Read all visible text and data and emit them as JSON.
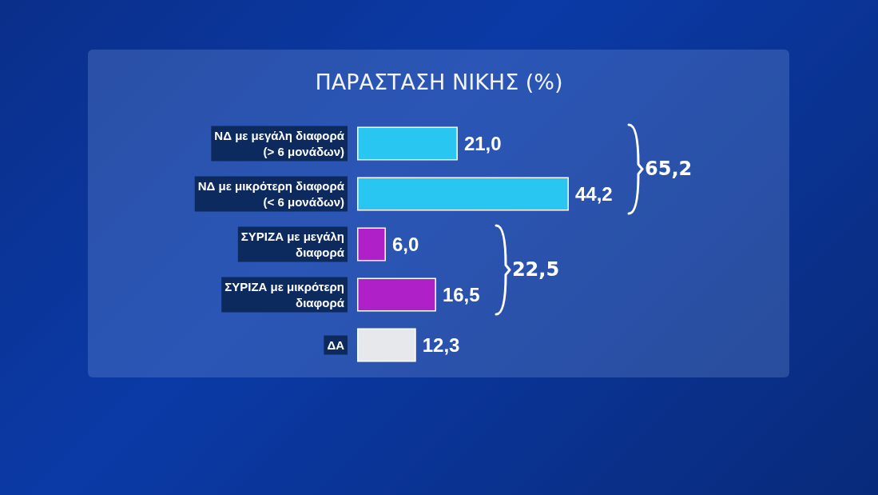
{
  "chart_data": {
    "type": "bar",
    "orientation": "horizontal",
    "title": "ΠΑΡΑΣΤΑΣΗ ΝΙΚΗΣ (%)",
    "categories": [
      "ΝΔ με μεγάλη διαφορά\n(> 6 μονάδων)",
      "ΝΔ με μικρότερη διαφορά\n(< 6 μονάδων)",
      "ΣΥΡΙΖΑ με μεγάλη\nδιαφορά",
      "ΣΥΡΙΖΑ με μικρότερη\nδιαφορά",
      "ΔΑ"
    ],
    "values": [
      21.0,
      44.2,
      6.0,
      16.5,
      12.3
    ],
    "colors": [
      "#2ac6f2",
      "#2ac6f2",
      "#b020c8",
      "#b020c8",
      "#e6e8ec"
    ],
    "value_labels": [
      "21,0",
      "44,2",
      "6,0",
      "16,5",
      "12,3"
    ],
    "annotations": [
      "65,2",
      "22,5"
    ],
    "grid": false
  }
}
